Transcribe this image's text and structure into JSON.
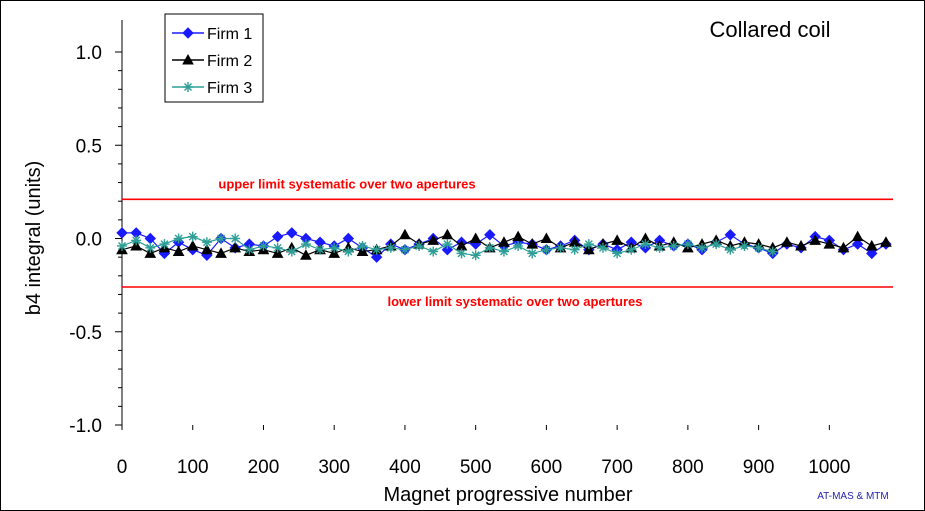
{
  "chart_data": {
    "type": "line",
    "title": "Collared coil",
    "xlabel": "Magnet progressive number",
    "ylabel": "b4 integral (units)",
    "xlim": [
      0,
      1090
    ],
    "ylim": [
      -1.0,
      1.0
    ],
    "x_ticks": [
      0,
      100,
      200,
      300,
      400,
      500,
      600,
      700,
      800,
      900,
      1000
    ],
    "y_ticks": [
      1.0,
      0.5,
      0.0,
      -0.5,
      -1.0
    ],
    "y_tick_labels": [
      "1.0",
      "0.5",
      "0.0",
      "-0.5",
      "-1.0"
    ],
    "grid": false,
    "legend_position": "top-left",
    "limits": [
      {
        "label": "upper limit systematic over two apertures",
        "y": 0.21,
        "color": "#ff0000"
      },
      {
        "label": "lower limit systematic over two apertures",
        "y": -0.26,
        "color": "#ff0000"
      }
    ],
    "footer_note": "AT-MAS & MTM",
    "footer_color": "#1f1fb0",
    "series": [
      {
        "name": "Firm 1",
        "color": "#1a1aff",
        "marker": "diamond",
        "x": [
          0,
          20,
          40,
          60,
          80,
          100,
          120,
          140,
          160,
          180,
          200,
          220,
          240,
          260,
          280,
          300,
          320,
          340,
          360,
          380,
          400,
          420,
          440,
          460,
          480,
          500,
          520,
          540,
          560,
          580,
          600,
          620,
          640,
          660,
          680,
          700,
          720,
          740,
          760,
          780,
          800,
          820,
          840,
          860,
          880,
          900,
          920,
          940,
          960,
          980,
          1000,
          1020,
          1040,
          1060,
          1080
        ],
        "y": [
          0.03,
          0.03,
          0.0,
          -0.08,
          -0.02,
          -0.06,
          -0.09,
          0.0,
          -0.05,
          -0.03,
          -0.04,
          0.01,
          0.03,
          0.0,
          -0.02,
          -0.04,
          0.0,
          -0.05,
          -0.1,
          -0.03,
          -0.06,
          -0.03,
          0.0,
          -0.06,
          -0.02,
          -0.03,
          0.02,
          -0.04,
          -0.02,
          -0.03,
          -0.06,
          -0.04,
          -0.01,
          -0.06,
          -0.03,
          -0.06,
          -0.02,
          -0.05,
          -0.01,
          -0.04,
          -0.03,
          -0.06,
          -0.02,
          0.02,
          -0.03,
          -0.05,
          -0.08,
          -0.03,
          -0.05,
          0.01,
          -0.01,
          -0.06,
          -0.03,
          -0.08,
          -0.03
        ]
      },
      {
        "name": "Firm 2",
        "color": "#000000",
        "marker": "triangle",
        "x": [
          0,
          20,
          40,
          60,
          80,
          100,
          120,
          140,
          160,
          180,
          200,
          220,
          240,
          260,
          280,
          300,
          320,
          340,
          360,
          380,
          400,
          420,
          440,
          460,
          480,
          500,
          520,
          540,
          560,
          580,
          600,
          620,
          640,
          660,
          680,
          700,
          720,
          740,
          760,
          780,
          800,
          820,
          840,
          860,
          880,
          900,
          920,
          940,
          960,
          980,
          1000,
          1020,
          1040,
          1060,
          1080
        ],
        "y": [
          -0.06,
          -0.04,
          -0.08,
          -0.05,
          -0.07,
          -0.04,
          -0.06,
          -0.08,
          -0.05,
          -0.07,
          -0.06,
          -0.08,
          -0.05,
          -0.09,
          -0.06,
          -0.08,
          -0.05,
          -0.07,
          -0.06,
          -0.04,
          0.02,
          -0.03,
          -0.01,
          0.02,
          -0.04,
          0.0,
          -0.05,
          -0.02,
          0.01,
          -0.03,
          0.0,
          -0.05,
          -0.02,
          -0.06,
          -0.03,
          -0.01,
          -0.05,
          0.0,
          -0.04,
          -0.02,
          -0.05,
          -0.03,
          -0.01,
          -0.04,
          -0.02,
          -0.03,
          -0.05,
          -0.02,
          -0.04,
          -0.01,
          -0.03,
          -0.05,
          0.01,
          -0.04,
          -0.02
        ]
      },
      {
        "name": "Firm 3",
        "color": "#2e9e96",
        "marker": "asterisk",
        "x": [
          0,
          20,
          40,
          60,
          80,
          100,
          120,
          140,
          160,
          180,
          200,
          220,
          240,
          260,
          280,
          300,
          320,
          340,
          360,
          380,
          400,
          420,
          440,
          460,
          480,
          500,
          520,
          540,
          560,
          580,
          600,
          620,
          640,
          660,
          680,
          700,
          720,
          740,
          760,
          780,
          800,
          820,
          840,
          860,
          880,
          900,
          920
        ],
        "y": [
          -0.04,
          -0.01,
          -0.05,
          -0.03,
          0.0,
          0.01,
          -0.02,
          0.0,
          0.0,
          -0.06,
          -0.04,
          -0.05,
          -0.07,
          -0.03,
          -0.06,
          -0.05,
          -0.07,
          -0.04,
          -0.06,
          -0.05,
          -0.06,
          -0.04,
          -0.07,
          -0.03,
          -0.08,
          -0.09,
          -0.05,
          -0.07,
          -0.04,
          -0.08,
          -0.06,
          -0.05,
          -0.06,
          -0.03,
          -0.05,
          -0.08,
          -0.06,
          -0.03,
          -0.05,
          -0.04,
          -0.03,
          -0.05,
          -0.03,
          -0.06,
          -0.04,
          -0.05,
          -0.07
        ]
      }
    ]
  }
}
